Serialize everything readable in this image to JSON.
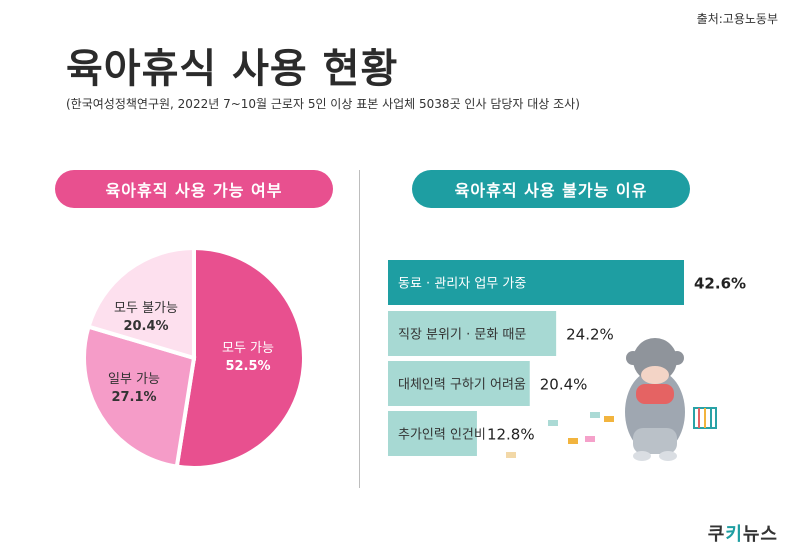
{
  "source": "출처:고용노동부",
  "title": "육아휴식 사용 현황",
  "subtitle": "(한국여성정책연구원, 2022년 7~10월 근로자 5인 이상 표본 사업체 5038곳 인사 담당자 대상 조사)",
  "logo": {
    "part1": "쿠",
    "part2": "키",
    "part3": "뉴스"
  },
  "colors": {
    "pink_dark": "#e8508f",
    "pink_mid": "#f59cc8",
    "pink_light": "#fde0ee",
    "teal_dark": "#1e9ea2",
    "teal_light": "#a7d9d3"
  },
  "chart_data": [
    {
      "type": "pie",
      "title": "육아휴직 사용 가능 여부",
      "slices": [
        {
          "label": "모두 가능",
          "value": 52.5,
          "value_label": "52.5%",
          "color": "#e8508f"
        },
        {
          "label": "일부 가능",
          "value": 27.1,
          "value_label": "27.1%",
          "color": "#f59cc8"
        },
        {
          "label": "모두 불가능",
          "value": 20.4,
          "value_label": "20.4%",
          "color": "#fde0ee"
        }
      ]
    },
    {
      "type": "bar",
      "orientation": "horizontal",
      "title": "육아휴직 사용 불가능 이유",
      "categories": [
        "동료 · 관리자 업무 가중",
        "직장 분위기 · 문화 때문",
        "대체인력 구하기 어려움",
        "추가인력 인건비"
      ],
      "values": [
        42.6,
        24.2,
        20.4,
        12.8
      ],
      "value_labels": [
        "42.6%",
        "24.2%",
        "20.4%",
        "12.8%"
      ],
      "colors": [
        "#1e9ea2",
        "#a7d9d3",
        "#a7d9d3",
        "#a7d9d3"
      ]
    }
  ]
}
